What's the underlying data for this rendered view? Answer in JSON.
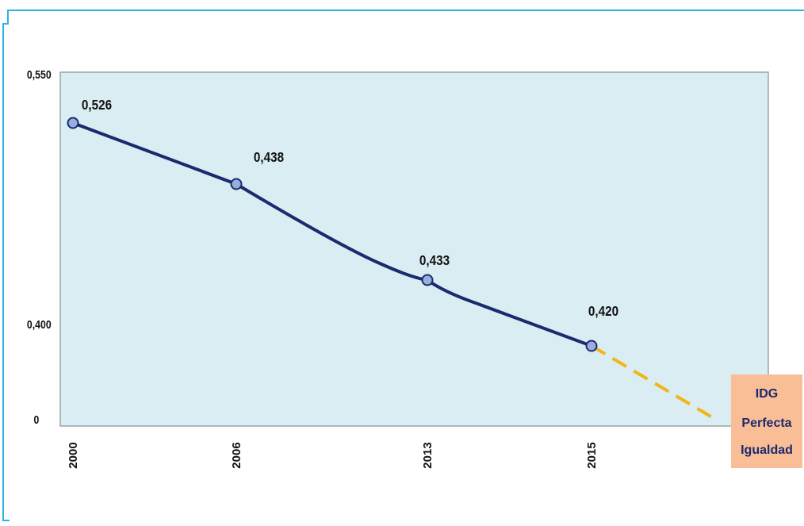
{
  "colors": {
    "frame": "#2bb3e6",
    "plot_bg": "#daedf3",
    "plot_border": "#9aa3a8",
    "line": "#1a2a6e",
    "marker_fill": "#9aaede",
    "projection": "#f2b418",
    "target_box": "#f9be95",
    "target_text": "#1a2a6e"
  },
  "chart_data": {
    "type": "line",
    "title": "",
    "xlabel": "",
    "ylabel": "",
    "y_ticks": [
      "0,550",
      "0,400",
      "0"
    ],
    "x": [
      "2000",
      "2006",
      "2013",
      "2015"
    ],
    "series": [
      {
        "values": [
          0.526,
          0.438,
          0.433,
          0.42
        ],
        "labels": [
          "0,526",
          "0,438",
          "0,433",
          "0,420"
        ]
      }
    ],
    "projection": {
      "style": "dashed",
      "target_value": 0,
      "label_lines": [
        "IDG",
        "Perfecta",
        "Igualdad"
      ]
    },
    "grid": false,
    "legend": "none"
  }
}
